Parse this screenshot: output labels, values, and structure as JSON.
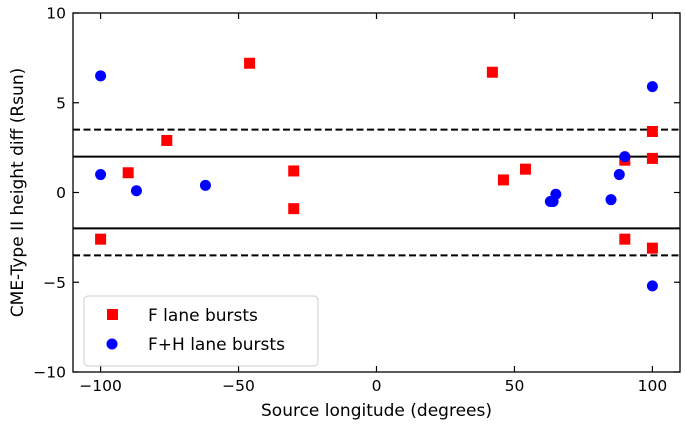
{
  "chart_data": {
    "type": "scatter",
    "xlabel": "Source longitude (degrees)",
    "ylabel": "CME-Type II height diff (Rsun)",
    "xlim": [
      -110,
      110
    ],
    "ylim": [
      -10,
      10
    ],
    "xticks": [
      -100,
      -50,
      0,
      50,
      100
    ],
    "yticks": [
      -10,
      -5,
      0,
      5,
      10
    ],
    "xtick_labels": [
      "−100",
      "−50",
      "0",
      "50",
      "100"
    ],
    "ytick_labels": [
      "−10",
      "−5",
      "0",
      "5",
      "10"
    ],
    "grid": false,
    "legend_position": "bottom-left",
    "reference_lines": [
      {
        "y": 2,
        "style": "solid"
      },
      {
        "y": -2,
        "style": "solid"
      },
      {
        "y": 3.5,
        "style": "dashed"
      },
      {
        "y": -3.5,
        "style": "dashed"
      }
    ],
    "series": [
      {
        "name": "F lane bursts",
        "marker": "square",
        "color": "#ff0000",
        "points": [
          [
            -100,
            -2.6
          ],
          [
            -90,
            1.1
          ],
          [
            -76,
            2.9
          ],
          [
            -46,
            7.2
          ],
          [
            -30,
            1.2
          ],
          [
            -30,
            -0.9
          ],
          [
            42,
            6.7
          ],
          [
            46,
            0.7
          ],
          [
            54,
            1.3
          ],
          [
            90,
            1.8
          ],
          [
            90,
            -2.6
          ],
          [
            100,
            3.4
          ],
          [
            100,
            1.9
          ],
          [
            100,
            -3.1
          ]
        ]
      },
      {
        "name": "F+H lane bursts",
        "marker": "circle",
        "color": "#0000ff",
        "points": [
          [
            -100,
            6.5
          ],
          [
            -100,
            1.0
          ],
          [
            -87,
            0.1
          ],
          [
            -62,
            0.4
          ],
          [
            63,
            -0.5
          ],
          [
            64,
            -0.5
          ],
          [
            65,
            -0.1
          ],
          [
            85,
            -0.4
          ],
          [
            88,
            1.0
          ],
          [
            90,
            2.0
          ],
          [
            100,
            5.9
          ],
          [
            100,
            -5.2
          ]
        ]
      }
    ]
  }
}
